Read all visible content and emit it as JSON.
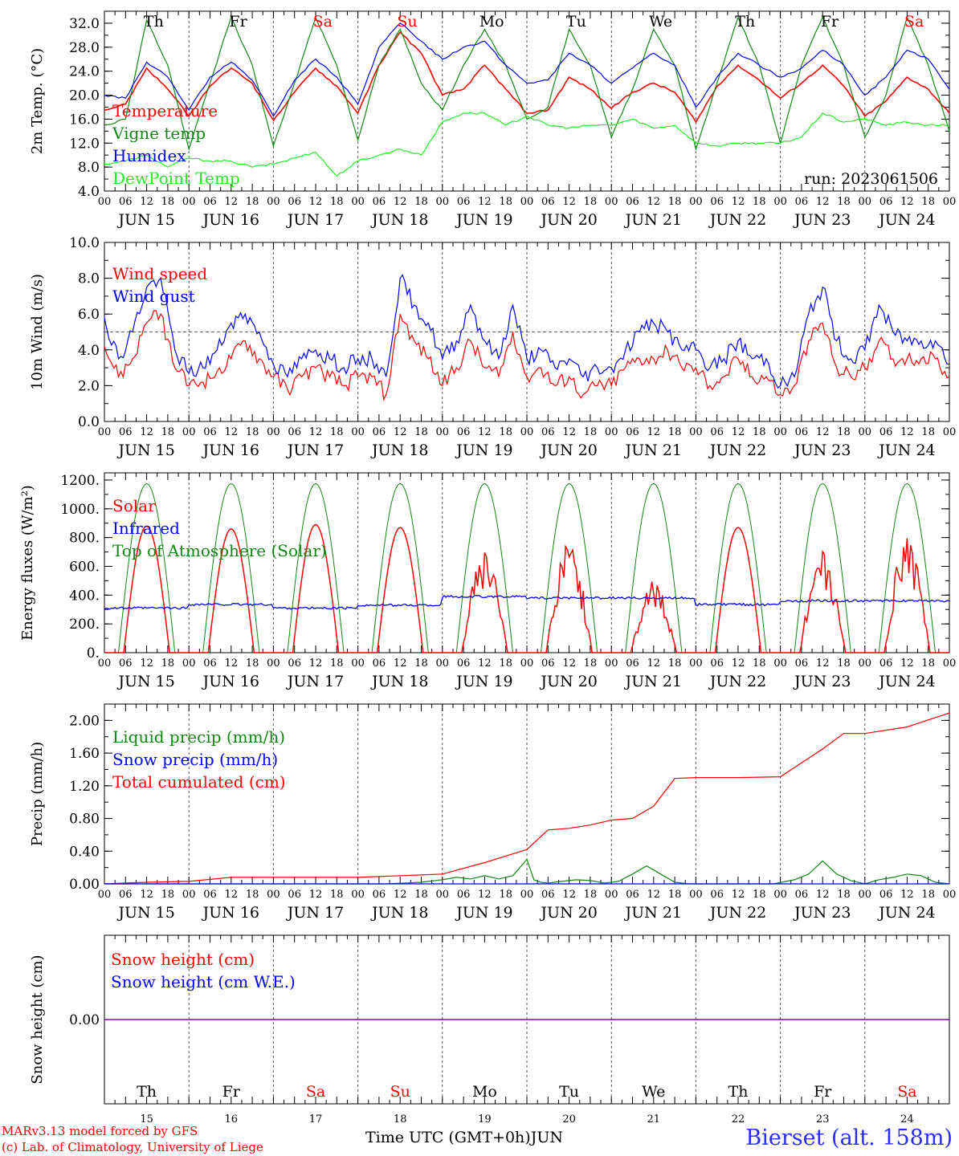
{
  "header": {
    "run_label": "run: 2023061506"
  },
  "footer": {
    "model_credit": "MARv3.13 model forced by GFS",
    "lab_credit": "(c) Lab. of Climatology, University of Liege",
    "time_axis_label": "Time UTC (GMT+0h)",
    "month_label": "JUN",
    "station": "Bierset (alt. 158m)"
  },
  "colors": {
    "red": "#ff0000",
    "green_dark": "#118811",
    "blue": "#0000ff",
    "green_light": "#22ee22",
    "purple": "#7700aa",
    "weekend": "#ff0000"
  },
  "days": [
    {
      "date": "JUN 15",
      "dow": "Th",
      "num": "15",
      "weekend": false
    },
    {
      "date": "JUN 16",
      "dow": "Fr",
      "num": "16",
      "weekend": false
    },
    {
      "date": "JUN 17",
      "dow": "Sa",
      "num": "17",
      "weekend": true
    },
    {
      "date": "JUN 18",
      "dow": "Su",
      "num": "18",
      "weekend": true
    },
    {
      "date": "JUN 19",
      "dow": "Mo",
      "num": "19",
      "weekend": false
    },
    {
      "date": "JUN 20",
      "dow": "Tu",
      "num": "20",
      "weekend": false
    },
    {
      "date": "JUN 21",
      "dow": "We",
      "num": "21",
      "weekend": false
    },
    {
      "date": "JUN 22",
      "dow": "Th",
      "num": "22",
      "weekend": false
    },
    {
      "date": "JUN 23",
      "dow": "Fr",
      "num": "23",
      "weekend": false
    },
    {
      "date": "JUN 24",
      "dow": "Sa",
      "num": "24",
      "weekend": true
    }
  ],
  "hour_ticks": [
    "00",
    "06",
    "12",
    "18"
  ],
  "chart_data": [
    {
      "id": "temp",
      "type": "line",
      "ylabel": "2m Temp. (°C)",
      "ylim": [
        4,
        34
      ],
      "yticks": [
        "4.0",
        "8.0",
        "12.0",
        "16.0",
        "20.0",
        "24.0",
        "28.0",
        "32.0"
      ],
      "ytick_values": [
        4,
        8,
        12,
        16,
        20,
        24,
        28,
        32
      ],
      "x_unit": "hours since JUN 15 00 UTC",
      "series": [
        {
          "name": "Temperature",
          "color": "#ff0000",
          "x": [
            0,
            6,
            12,
            18,
            24,
            30,
            36,
            42,
            48,
            54,
            60,
            66,
            72,
            78,
            84,
            90,
            96,
            102,
            108,
            114,
            120,
            126,
            132,
            138,
            144,
            150,
            156,
            162,
            168,
            174,
            180,
            186,
            192,
            198,
            204,
            210,
            216,
            222,
            228,
            234,
            240
          ],
          "y": [
            17.5,
            18.5,
            24.5,
            21,
            16.5,
            21.5,
            24.5,
            22,
            15.8,
            20.5,
            24.5,
            21.5,
            17,
            25,
            30.5,
            27,
            20,
            21,
            25,
            21,
            17,
            17.5,
            23,
            21,
            17.8,
            20.5,
            22,
            20.5,
            15.5,
            21.5,
            25,
            22.5,
            19.5,
            22,
            25,
            21.5,
            16.5,
            19,
            23,
            21,
            17
          ]
        },
        {
          "name": "Vigne temp",
          "color": "#118811",
          "x": [
            0,
            6,
            12,
            18,
            24,
            30,
            36,
            42,
            48,
            54,
            60,
            66,
            72,
            78,
            84,
            90,
            96,
            102,
            108,
            114,
            120,
            126,
            132,
            138,
            144,
            150,
            156,
            162,
            168,
            174,
            180,
            186,
            192,
            198,
            204,
            210,
            216,
            222,
            228,
            234,
            240
          ],
          "y": [
            15,
            16,
            32.5,
            25,
            11,
            22,
            33,
            25,
            11.5,
            22,
            33,
            25,
            12.5,
            25,
            31,
            22,
            17.5,
            25,
            31,
            25,
            16,
            18,
            31,
            25,
            13,
            21,
            31,
            25,
            11,
            22,
            33,
            25,
            12,
            25,
            33,
            25,
            13,
            20,
            33,
            25,
            14
          ]
        },
        {
          "name": "Humidex",
          "color": "#0000ff",
          "x": [
            0,
            6,
            12,
            18,
            24,
            30,
            36,
            42,
            48,
            54,
            60,
            66,
            72,
            78,
            84,
            90,
            96,
            102,
            108,
            114,
            120,
            126,
            132,
            138,
            144,
            150,
            156,
            162,
            168,
            174,
            180,
            186,
            192,
            198,
            204,
            210,
            216,
            222,
            228,
            234,
            240
          ],
          "y": [
            20,
            19.5,
            25.5,
            23,
            17.5,
            23,
            25.5,
            22.5,
            16.5,
            22.5,
            26,
            23,
            18.5,
            28,
            32,
            29,
            26,
            28,
            29,
            25,
            22,
            22.5,
            27,
            25,
            22,
            24.5,
            27,
            25,
            18,
            23,
            27,
            25,
            23,
            24.5,
            27.5,
            25,
            20,
            23,
            27.5,
            26,
            21
          ]
        },
        {
          "name": "DewPoint Temp",
          "color": "#22ee22",
          "x": [
            0,
            6,
            12,
            18,
            24,
            30,
            36,
            42,
            48,
            54,
            60,
            66,
            72,
            78,
            84,
            90,
            96,
            102,
            108,
            114,
            120,
            126,
            132,
            138,
            144,
            150,
            156,
            162,
            168,
            174,
            180,
            186,
            192,
            198,
            204,
            210,
            216,
            222,
            228,
            234,
            240
          ],
          "y": [
            8.5,
            9,
            10,
            8,
            9.5,
            9,
            9,
            8,
            8.5,
            9.5,
            10.5,
            6.5,
            9,
            10,
            11,
            10,
            15.5,
            17,
            17,
            15,
            16.5,
            15,
            14.5,
            15,
            15,
            16,
            14.5,
            15,
            12,
            11.5,
            12,
            12,
            12,
            13,
            17,
            15.5,
            16,
            15,
            15.5,
            15,
            15
          ]
        }
      ],
      "legend": [
        "Temperature",
        "Vigne temp",
        "Humidex",
        "DewPoint Temp"
      ],
      "legend_placement": "top-left"
    },
    {
      "id": "wind",
      "type": "line",
      "ylabel": "10m Wind (m/s)",
      "ylim": [
        0,
        10
      ],
      "yticks": [
        "0.0",
        "2.0",
        "4.0",
        "6.0",
        "8.0",
        "10.0"
      ],
      "ytick_values": [
        0,
        2,
        4,
        6,
        8,
        10
      ],
      "reference_line": 5,
      "x_unit": "hours since JUN 15 00 UTC",
      "series": [
        {
          "name": "Wind speed",
          "color": "#ff0000",
          "x": [
            0,
            4,
            8,
            12,
            16,
            20,
            24,
            28,
            32,
            36,
            40,
            44,
            48,
            52,
            56,
            60,
            64,
            68,
            72,
            76,
            80,
            84,
            88,
            92,
            96,
            100,
            104,
            108,
            112,
            116,
            120,
            124,
            128,
            132,
            136,
            140,
            144,
            148,
            152,
            156,
            160,
            164,
            168,
            172,
            176,
            180,
            184,
            188,
            192,
            196,
            200,
            204,
            208,
            212,
            216,
            220,
            224,
            228,
            232,
            236,
            240
          ],
          "y": [
            4.2,
            2.5,
            3.5,
            5.5,
            6,
            3,
            2,
            2.2,
            2.8,
            3.5,
            4.5,
            3.5,
            2.5,
            1.8,
            2.5,
            3,
            2.5,
            2,
            2.5,
            2.5,
            1.5,
            6,
            4.5,
            3.5,
            2,
            3,
            4.5,
            3,
            2.5,
            5,
            2.5,
            3,
            2,
            2.5,
            1.5,
            2,
            2,
            3,
            3.5,
            3.5,
            4,
            3,
            3,
            2,
            2.5,
            3.5,
            2.5,
            2.5,
            1.5,
            2,
            4.5,
            5.5,
            3,
            2.5,
            3,
            4.5,
            3.5,
            3.5,
            3.5,
            3.5,
            2.5
          ]
        },
        {
          "name": "Wind gust",
          "color": "#0000ff",
          "x": [
            0,
            4,
            8,
            12,
            16,
            20,
            24,
            28,
            32,
            36,
            40,
            44,
            48,
            52,
            56,
            60,
            64,
            68,
            72,
            76,
            80,
            84,
            88,
            92,
            96,
            100,
            104,
            108,
            112,
            116,
            120,
            124,
            128,
            132,
            136,
            140,
            144,
            148,
            152,
            156,
            160,
            164,
            168,
            172,
            176,
            180,
            184,
            188,
            192,
            196,
            200,
            204,
            208,
            212,
            216,
            220,
            224,
            228,
            232,
            236,
            240
          ],
          "y": [
            5.8,
            3.5,
            5,
            7.5,
            8,
            4,
            2.7,
            3,
            4,
            5.5,
            6,
            5,
            3.2,
            2.5,
            3.5,
            4,
            3.5,
            3,
            3.5,
            3.5,
            2.5,
            8,
            6.5,
            5.5,
            3.5,
            4.5,
            6.5,
            4.5,
            3.5,
            6.5,
            3.5,
            4,
            3,
            3.5,
            2.5,
            3,
            3,
            4,
            5,
            5.5,
            5,
            4,
            4,
            3,
            3.5,
            4.5,
            3.5,
            3.5,
            2,
            2.5,
            6,
            7.5,
            4.5,
            3.5,
            4,
            6.5,
            5,
            4.5,
            4.5,
            4.5,
            3.2
          ]
        }
      ],
      "legend": [
        "Wind speed",
        "Wind gust"
      ],
      "legend_placement": "top-left"
    },
    {
      "id": "energy",
      "type": "line",
      "ylabel": "Energy fluxes (W/m²)",
      "ylim": [
        0,
        1250
      ],
      "yticks": [
        "0.",
        "200.",
        "400.",
        "600.",
        "800.",
        "1000.",
        "1200."
      ],
      "ytick_values": [
        0,
        200,
        400,
        600,
        800,
        1000,
        1200
      ],
      "toa_peak": 1175,
      "day_length_hours": [
        4,
        20
      ],
      "solar_peaks": [
        880,
        860,
        890,
        870,
        700,
        760,
        500,
        870,
        740,
        800
      ],
      "infrared_level": [
        310,
        335,
        310,
        330,
        390,
        380,
        380,
        335,
        360,
        360
      ],
      "x_unit": "hours since JUN 15 00 UTC",
      "series_names": [
        "Solar",
        "Infrared",
        "Top of Atmosphere (Solar)"
      ],
      "legend": [
        "Solar",
        "Infrared",
        "Top of Atmosphere (Solar)"
      ],
      "legend_placement": "top-left"
    },
    {
      "id": "precip",
      "type": "line",
      "ylabel": "Precip (mm/h)",
      "ylim": [
        0,
        2.2
      ],
      "yticks": [
        "0.00",
        "0.40",
        "0.80",
        "1.20",
        "1.60",
        "2.00"
      ],
      "ytick_values": [
        0,
        0.4,
        0.8,
        1.2,
        1.6,
        2.0
      ],
      "x_unit": "hours since JUN 15 00 UTC",
      "series": [
        {
          "name": "Total cumulated (cm)",
          "color": "#ff0000",
          "x": [
            0,
            12,
            24,
            36,
            48,
            72,
            96,
            108,
            120,
            126,
            132,
            138,
            144,
            150,
            156,
            162,
            168,
            180,
            192,
            204,
            210,
            216,
            228,
            240
          ],
          "y": [
            0.0,
            0.02,
            0.03,
            0.08,
            0.08,
            0.08,
            0.12,
            0.26,
            0.42,
            0.66,
            0.68,
            0.72,
            0.78,
            0.8,
            0.95,
            1.29,
            1.3,
            1.3,
            1.31,
            1.65,
            1.84,
            1.84,
            1.92,
            2.09
          ]
        },
        {
          "name": "Liquid precip (mm/h)",
          "color": "#118811",
          "x": [
            0,
            80,
            90,
            96,
            100,
            104,
            108,
            112,
            116,
            120,
            122,
            124,
            126,
            130,
            134,
            138,
            142,
            146,
            150,
            154,
            158,
            162,
            166,
            170,
            180,
            190,
            196,
            200,
            204,
            208,
            212,
            216,
            220,
            224,
            228,
            232,
            236,
            240
          ],
          "y": [
            0,
            0,
            0.02,
            0.05,
            0.08,
            0.06,
            0.1,
            0.06,
            0.1,
            0.3,
            0.05,
            0.02,
            0.01,
            0.03,
            0.05,
            0.04,
            0.01,
            0.03,
            0.12,
            0.22,
            0.12,
            0.02,
            0,
            0,
            0,
            0,
            0.05,
            0.12,
            0.28,
            0.12,
            0.04,
            0,
            0.05,
            0.08,
            0.12,
            0.1,
            0.02,
            0
          ]
        },
        {
          "name": "Snow precip (mm/h)",
          "color": "#0000ff",
          "x": [
            0,
            240
          ],
          "y": [
            0,
            0
          ]
        }
      ],
      "legend": [
        "Liquid precip (mm/h)",
        "Snow precip (mm/h)",
        "Total cumulated (cm)"
      ],
      "legend_placement": "top-left"
    },
    {
      "id": "snow",
      "type": "line",
      "ylabel": "Snow height (cm)",
      "ylim": [
        -1,
        1
      ],
      "yticks": [
        "0.00"
      ],
      "ytick_values": [
        0
      ],
      "x_unit": "hours since JUN 15 00 UTC",
      "series": [
        {
          "name": "Snow height (cm)",
          "color": "#ff0000",
          "x": [
            0,
            240
          ],
          "y": [
            0,
            0
          ]
        },
        {
          "name": "Snow height (cm W.E.)",
          "color": "#0000ff",
          "x": [
            0,
            240
          ],
          "y": [
            0,
            0
          ]
        }
      ],
      "legend": [
        "Snow height (cm)",
        "Snow height (cm W.E.)"
      ],
      "legend_placement": "top-left"
    }
  ]
}
